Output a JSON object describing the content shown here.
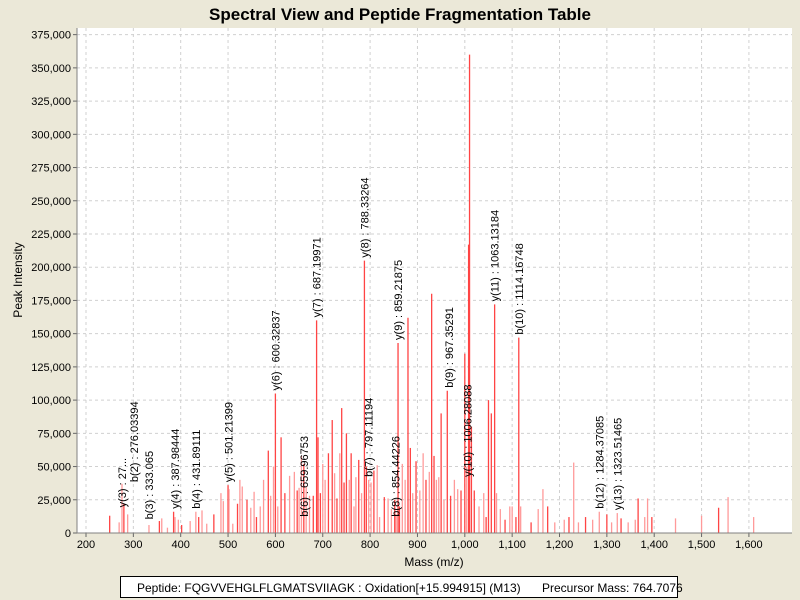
{
  "chart_data": {
    "type": "bar",
    "title": "Spectral View and Peptide Fragmentation Table",
    "xlabel": "Mass (m/z)",
    "ylabel": "Peak Intensity",
    "xlim": [
      181,
      1691
    ],
    "ylim": [
      0,
      380000
    ],
    "xticks": [
      200,
      300,
      400,
      500,
      600,
      700,
      800,
      900,
      1000,
      1100,
      1200,
      1300,
      1400,
      1500,
      1600
    ],
    "xtick_labels": [
      "200",
      "300",
      "400",
      "500",
      "600",
      "700",
      "800",
      "900",
      "1,000",
      "1,100",
      "1,200",
      "1,300",
      "1,400",
      "1,500",
      "1,600"
    ],
    "yticks": [
      0,
      25000,
      50000,
      75000,
      100000,
      125000,
      150000,
      175000,
      200000,
      225000,
      250000,
      275000,
      300000,
      325000,
      350000,
      375000
    ],
    "ytick_labels": [
      "0",
      "25,000",
      "50,000",
      "75,000",
      "100,000",
      "125,000",
      "150,000",
      "175,000",
      "200,000",
      "225,000",
      "250,000",
      "275,000",
      "300,000",
      "325,000",
      "350,000",
      "375,000"
    ],
    "grid": true,
    "colors": {
      "strong": "#ff4444",
      "light": "#ff9a9a",
      "background": "#ffffff",
      "grid": "#d0d0d0"
    },
    "peaks": [
      [
        250,
        13000
      ],
      [
        270,
        8000
      ],
      [
        276,
        37000
      ],
      [
        280,
        22000
      ],
      [
        288,
        14000
      ],
      [
        333,
        6000
      ],
      [
        355,
        9000
      ],
      [
        360,
        11000
      ],
      [
        372,
        4000
      ],
      [
        385,
        16000
      ],
      [
        388,
        12000
      ],
      [
        395,
        10000
      ],
      [
        402,
        6000
      ],
      [
        420,
        9000
      ],
      [
        432,
        16000
      ],
      [
        438,
        12000
      ],
      [
        445,
        17000
      ],
      [
        455,
        7000
      ],
      [
        470,
        14000
      ],
      [
        485,
        30000
      ],
      [
        490,
        24000
      ],
      [
        500,
        36000
      ],
      [
        502,
        33000
      ],
      [
        510,
        7000
      ],
      [
        520,
        22000
      ],
      [
        525,
        40000
      ],
      [
        530,
        35000
      ],
      [
        540,
        25000
      ],
      [
        548,
        19000
      ],
      [
        555,
        31000
      ],
      [
        560,
        12000
      ],
      [
        568,
        20000
      ],
      [
        575,
        40000
      ],
      [
        585,
        62000
      ],
      [
        590,
        28000
      ],
      [
        596,
        50000
      ],
      [
        600,
        105000
      ],
      [
        605,
        20000
      ],
      [
        612,
        72000
      ],
      [
        620,
        30000
      ],
      [
        630,
        43000
      ],
      [
        640,
        46000
      ],
      [
        646,
        32000
      ],
      [
        650,
        34000
      ],
      [
        655,
        58000
      ],
      [
        660,
        52000
      ],
      [
        665,
        35000
      ],
      [
        672,
        28000
      ],
      [
        680,
        28000
      ],
      [
        687,
        160000
      ],
      [
        690,
        72000
      ],
      [
        695,
        30000
      ],
      [
        700,
        52000
      ],
      [
        705,
        40000
      ],
      [
        712,
        60000
      ],
      [
        720,
        85000
      ],
      [
        725,
        45000
      ],
      [
        730,
        26000
      ],
      [
        736,
        60000
      ],
      [
        740,
        94000
      ],
      [
        745,
        38000
      ],
      [
        750,
        75000
      ],
      [
        756,
        40000
      ],
      [
        760,
        60000
      ],
      [
        766,
        20000
      ],
      [
        770,
        42000
      ],
      [
        776,
        55000
      ],
      [
        782,
        30000
      ],
      [
        788,
        205000
      ],
      [
        792,
        50000
      ],
      [
        797,
        40000
      ],
      [
        802,
        38000
      ],
      [
        808,
        47000
      ],
      [
        815,
        51000
      ],
      [
        820,
        12000
      ],
      [
        830,
        27000
      ],
      [
        838,
        26000
      ],
      [
        845,
        18000
      ],
      [
        852,
        25000
      ],
      [
        855,
        14000
      ],
      [
        859,
        143000
      ],
      [
        862,
        20000
      ],
      [
        868,
        52000
      ],
      [
        874,
        40000
      ],
      [
        880,
        162000
      ],
      [
        885,
        64000
      ],
      [
        890,
        30000
      ],
      [
        897,
        54000
      ],
      [
        905,
        32000
      ],
      [
        912,
        60000
      ],
      [
        918,
        40000
      ],
      [
        925,
        46000
      ],
      [
        930,
        180000
      ],
      [
        935,
        58000
      ],
      [
        940,
        40000
      ],
      [
        945,
        42000
      ],
      [
        950,
        90000
      ],
      [
        956,
        25000
      ],
      [
        963,
        107000
      ],
      [
        970,
        28000
      ],
      [
        978,
        40000
      ],
      [
        985,
        33000
      ],
      [
        992,
        32000
      ],
      [
        1000,
        135000
      ],
      [
        1004,
        50000
      ],
      [
        1008,
        217000
      ],
      [
        1010,
        360000
      ],
      [
        1014,
        80000
      ],
      [
        1020,
        32000
      ],
      [
        1030,
        20000
      ],
      [
        1040,
        30000
      ],
      [
        1045,
        12000
      ],
      [
        1050,
        100000
      ],
      [
        1056,
        90000
      ],
      [
        1063,
        172000
      ],
      [
        1067,
        30000
      ],
      [
        1075,
        18000
      ],
      [
        1085,
        10000
      ],
      [
        1095,
        20000
      ],
      [
        1100,
        20000
      ],
      [
        1108,
        12000
      ],
      [
        1114,
        147000
      ],
      [
        1118,
        20000
      ],
      [
        1140,
        8000
      ],
      [
        1155,
        18000
      ],
      [
        1165,
        33000
      ],
      [
        1175,
        20000
      ],
      [
        1190,
        8000
      ],
      [
        1210,
        10000
      ],
      [
        1220,
        12000
      ],
      [
        1230,
        53000
      ],
      [
        1240,
        8000
      ],
      [
        1255,
        12000
      ],
      [
        1270,
        10000
      ],
      [
        1284,
        16000
      ],
      [
        1300,
        14000
      ],
      [
        1310,
        8000
      ],
      [
        1322,
        15000
      ],
      [
        1330,
        11000
      ],
      [
        1345,
        8000
      ],
      [
        1360,
        10000
      ],
      [
        1366,
        26000
      ],
      [
        1380,
        12000
      ],
      [
        1386,
        26000
      ],
      [
        1395,
        12000
      ],
      [
        1445,
        11000
      ],
      [
        1500,
        13000
      ],
      [
        1536,
        19000
      ],
      [
        1556,
        27000
      ],
      [
        1610,
        12000
      ]
    ],
    "annotations": [
      {
        "label": "y(3) : 27...",
        "mass": 276,
        "intensity": 17000
      },
      {
        "label": "b(2) : 276.03394",
        "mass": 281,
        "intensity": 36000
      },
      {
        "label": "b(3) : 333.065",
        "mass": 333,
        "intensity": 8000
      },
      {
        "label": "y(4) : 387.98444",
        "mass": 388,
        "intensity": 16000
      },
      {
        "label": "b(4) : 431.89111",
        "mass": 432,
        "intensity": 16000
      },
      {
        "label": "y(5) : 501.21399",
        "mass": 501,
        "intensity": 36000
      },
      {
        "label": "y(6) : 600.32837",
        "mass": 600,
        "intensity": 105000
      },
      {
        "label": "b(6) : 659.96753",
        "mass": 660,
        "intensity": 10000
      },
      {
        "label": "y(7) : 687.19971",
        "mass": 687,
        "intensity": 160000
      },
      {
        "label": "y(8) : 788.33264",
        "mass": 788,
        "intensity": 205000
      },
      {
        "label": "b(7) : 797.11194",
        "mass": 797,
        "intensity": 40000
      },
      {
        "label": "b(8) : 854.44226",
        "mass": 854,
        "intensity": 10000
      },
      {
        "label": "y(9) : 859.21875",
        "mass": 859,
        "intensity": 143000
      },
      {
        "label": "b(9) : 967.35291",
        "mass": 967,
        "intensity": 107000
      },
      {
        "label": "y(10) : 1006.28088",
        "mass": 1006,
        "intensity": 40000
      },
      {
        "label": "y(11) : 1063.13184",
        "mass": 1063,
        "intensity": 172000
      },
      {
        "label": "b(10) : 1114.16748",
        "mass": 1114,
        "intensity": 147000
      },
      {
        "label": "b(12) : 1284.37085",
        "mass": 1284,
        "intensity": 16000
      },
      {
        "label": "y(13) : 1323.51465",
        "mass": 1323,
        "intensity": 15000
      }
    ]
  },
  "footer": {
    "peptide": "Peptide: FQGVVEHGLFLGMATSVIIAGK : Oxidation[+15.994915] (M13)",
    "precursor": "Precursor Mass: 764.7076"
  }
}
